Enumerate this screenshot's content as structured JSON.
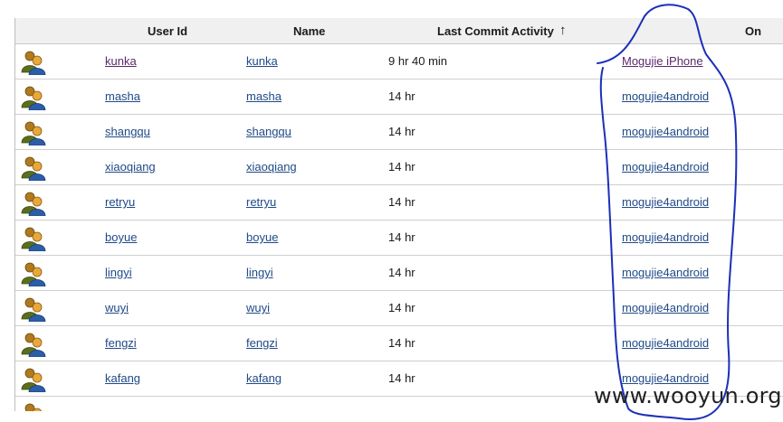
{
  "table": {
    "headers": {
      "user_id": "User Id",
      "name": "Name",
      "last_commit": "Last Commit Activity",
      "sort_arrow": "↑",
      "on": "On"
    },
    "rows": [
      {
        "user_id": "kunka",
        "name": "kunka",
        "last_commit": "9 hr 40 min",
        "on": "Mogujie iPhone"
      },
      {
        "user_id": "masha",
        "name": "masha",
        "last_commit": "14 hr",
        "on": "mogujie4android"
      },
      {
        "user_id": "shangqu",
        "name": "shangqu",
        "last_commit": "14 hr",
        "on": "mogujie4android"
      },
      {
        "user_id": "xiaoqiang",
        "name": "xiaoqiang",
        "last_commit": "14 hr",
        "on": "mogujie4android"
      },
      {
        "user_id": "retryu",
        "name": "retryu",
        "last_commit": "14 hr",
        "on": "mogujie4android"
      },
      {
        "user_id": "boyue",
        "name": "boyue",
        "last_commit": "14 hr",
        "on": "mogujie4android"
      },
      {
        "user_id": "lingyi",
        "name": "lingyi",
        "last_commit": "14 hr",
        "on": "mogujie4android"
      },
      {
        "user_id": "wuyi",
        "name": "wuyi",
        "last_commit": "14 hr",
        "on": "mogujie4android"
      },
      {
        "user_id": "fengzi",
        "name": "fengzi",
        "last_commit": "14 hr",
        "on": "mogujie4android"
      },
      {
        "user_id": "kafang",
        "name": "kafang",
        "last_commit": "14 hr",
        "on": "mogujie4android"
      },
      {
        "user_id": "",
        "name": "",
        "last_commit": "",
        "on": ""
      }
    ]
  },
  "icons": {
    "row_icon": "users-group-icon"
  },
  "colors": {
    "link": "#204a87",
    "visited_link": "#5a2a6a",
    "annotation": "#1c2fb8"
  },
  "watermark": "www.wooyun.org"
}
